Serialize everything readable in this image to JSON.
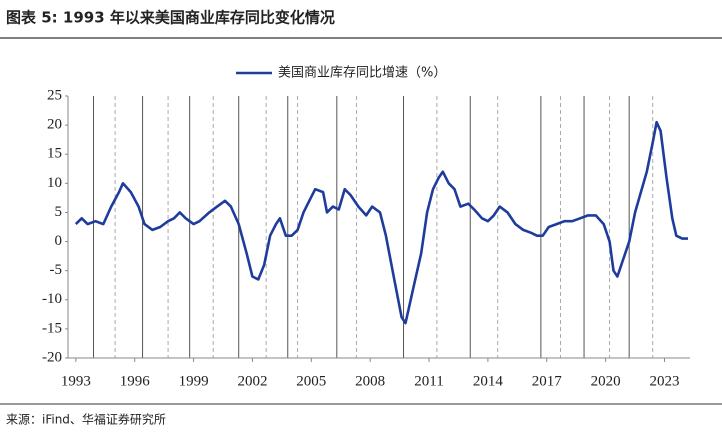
{
  "chart_data": {
    "type": "line",
    "title": "图表 5:  1993 年以来美国商业库存同比变化情况",
    "source": "来源：iFind、华福证券研究所",
    "x": [
      1993.0,
      1993.3,
      1993.6,
      1994.0,
      1994.4,
      1994.8,
      1995.2,
      1995.4,
      1995.8,
      1996.2,
      1996.5,
      1996.9,
      1997.3,
      1997.7,
      1998.0,
      1998.3,
      1998.6,
      1999.0,
      1999.3,
      1999.8,
      2000.2,
      2000.6,
      2000.9,
      2001.3,
      2001.7,
      2002.0,
      2002.3,
      2002.6,
      2002.9,
      2003.2,
      2003.4,
      2003.7,
      2004.0,
      2004.3,
      2004.6,
      2004.9,
      2005.2,
      2005.6,
      2005.8,
      2006.1,
      2006.4,
      2006.7,
      2007.0,
      2007.4,
      2007.8,
      2008.1,
      2008.5,
      2008.8,
      2009.2,
      2009.6,
      2009.8,
      2010.2,
      2010.6,
      2010.9,
      2011.2,
      2011.5,
      2011.7,
      2012.0,
      2012.3,
      2012.6,
      2013.0,
      2013.3,
      2013.7,
      2014.0,
      2014.3,
      2014.6,
      2015.0,
      2015.4,
      2015.8,
      2016.2,
      2016.5,
      2016.8,
      2017.1,
      2017.5,
      2017.9,
      2018.3,
      2018.7,
      2019.1,
      2019.5,
      2019.9,
      2020.2,
      2020.4,
      2020.6,
      2020.9,
      2021.2,
      2021.5,
      2021.8,
      2022.1,
      2022.4,
      2022.6,
      2022.8,
      2023.1,
      2023.4,
      2023.6,
      2023.9,
      2024.2
    ],
    "series": [
      {
        "name": "美国商业库存同比增速（%）",
        "color": "#1f3c9c",
        "values": [
          3,
          4,
          3,
          3.5,
          3,
          6,
          8.5,
          10,
          8.5,
          6,
          3,
          2,
          2.5,
          3.5,
          4,
          5,
          4,
          3,
          3.5,
          5,
          6,
          7,
          6,
          3,
          -2,
          -6,
          -6.5,
          -4,
          1,
          3,
          4,
          1,
          1,
          2,
          5,
          7,
          9,
          8.5,
          5,
          6,
          5.5,
          9,
          8,
          6,
          4.5,
          6,
          5,
          1,
          -6,
          -13,
          -14,
          -8,
          -2,
          5,
          9,
          11,
          12,
          10,
          9,
          6,
          6.5,
          5.5,
          4,
          3.5,
          4.5,
          6,
          5,
          3,
          2,
          1.5,
          1,
          1,
          2.5,
          3,
          3.5,
          3.5,
          4,
          4.5,
          4.5,
          3,
          0,
          -5,
          -6,
          -3,
          0,
          5,
          8.5,
          12,
          17,
          20.5,
          19,
          11,
          4,
          1,
          0.5,
          0.5
        ]
      }
    ],
    "xlim": [
      1992.6,
      2024.3
    ],
    "xticks": [
      1993,
      1996,
      1999,
      2002,
      2005,
      2008,
      2011,
      2014,
      2017,
      2020,
      2023
    ],
    "ylim": [
      -20,
      25
    ],
    "yticks": [
      -20,
      -15,
      -10,
      -5,
      0,
      5,
      10,
      15,
      20,
      25
    ],
    "reference_lines": [
      {
        "x": 1993.9,
        "style": "solid"
      },
      {
        "x": 1995.0,
        "style": "dashed"
      },
      {
        "x": 1996.4,
        "style": "solid"
      },
      {
        "x": 1997.7,
        "style": "dashed"
      },
      {
        "x": 1998.8,
        "style": "solid"
      },
      {
        "x": 2000.0,
        "style": "dashed"
      },
      {
        "x": 2001.3,
        "style": "solid"
      },
      {
        "x": 2002.7,
        "style": "dashed"
      },
      {
        "x": 2003.8,
        "style": "solid"
      },
      {
        "x": 2004.3,
        "style": "dashed"
      },
      {
        "x": 2006.3,
        "style": "solid"
      },
      {
        "x": 2007.3,
        "style": "dashed"
      },
      {
        "x": 2009.7,
        "style": "solid"
      },
      {
        "x": 2011.4,
        "style": "dashed"
      },
      {
        "x": 2013.1,
        "style": "solid"
      },
      {
        "x": 2014.5,
        "style": "dashed"
      },
      {
        "x": 2016.7,
        "style": "solid"
      },
      {
        "x": 2017.7,
        "style": "dashed"
      },
      {
        "x": 2018.9,
        "style": "solid"
      },
      {
        "x": 2020.2,
        "style": "dashed"
      },
      {
        "x": 2021.2,
        "style": "solid"
      },
      {
        "x": 2022.4,
        "style": "dashed"
      }
    ],
    "legend": "top"
  }
}
